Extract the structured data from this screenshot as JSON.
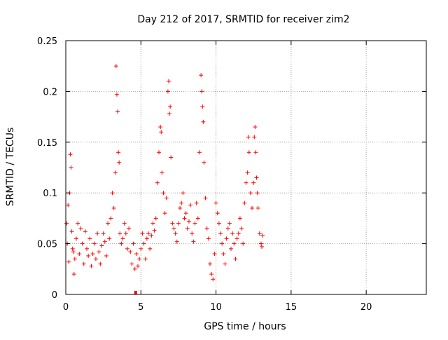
{
  "chart_data": {
    "type": "scatter",
    "title": "Day 212 of 2017, SRMTID for receiver zim2",
    "xlabel": "GPS time / hours",
    "ylabel": "SRMTID / TECUs",
    "xlim": [
      0,
      24
    ],
    "ylim": [
      0,
      0.25
    ],
    "x_ticks": [
      0,
      5,
      10,
      15,
      20
    ],
    "x_tick_labels": [
      "0",
      "5",
      "10",
      "15",
      "20"
    ],
    "y_ticks": [
      0,
      0.05,
      0.1,
      0.15,
      0.2,
      0.25
    ],
    "y_tick_labels": [
      "0",
      "0.05",
      "0.1",
      "0.15",
      "0.2",
      "0.25"
    ],
    "grid": true,
    "marker": "+",
    "colors": {
      "series": "#ff0000",
      "grid": "#a0a0a0",
      "axis": "#000000"
    },
    "series": [
      {
        "name": "zim2",
        "points": [
          [
            0.05,
            0.07
          ],
          [
            0.1,
            0.05
          ],
          [
            0.15,
            0.088
          ],
          [
            0.2,
            0.032
          ],
          [
            0.25,
            0.1
          ],
          [
            0.3,
            0.138
          ],
          [
            0.35,
            0.125
          ],
          [
            0.4,
            0.062
          ],
          [
            0.45,
            0.045
          ],
          [
            0.5,
            0.042
          ],
          [
            0.55,
            0.02
          ],
          [
            0.6,
            0.035
          ],
          [
            0.7,
            0.055
          ],
          [
            0.8,
            0.07
          ],
          [
            0.9,
            0.04
          ],
          [
            1.0,
            0.065
          ],
          [
            1.1,
            0.05
          ],
          [
            1.2,
            0.03
          ],
          [
            1.3,
            0.062
          ],
          [
            1.4,
            0.045
          ],
          [
            1.5,
            0.038
          ],
          [
            1.6,
            0.055
          ],
          [
            1.7,
            0.028
          ],
          [
            1.8,
            0.04
          ],
          [
            1.9,
            0.05
          ],
          [
            2.0,
            0.035
          ],
          [
            2.1,
            0.06
          ],
          [
            2.2,
            0.042
          ],
          [
            2.3,
            0.03
          ],
          [
            2.4,
            0.048
          ],
          [
            2.5,
            0.06
          ],
          [
            2.6,
            0.052
          ],
          [
            2.7,
            0.038
          ],
          [
            2.8,
            0.07
          ],
          [
            2.9,
            0.055
          ],
          [
            3.0,
            0.075
          ],
          [
            3.1,
            0.1
          ],
          [
            3.2,
            0.085
          ],
          [
            3.3,
            0.12
          ],
          [
            3.35,
            0.225
          ],
          [
            3.4,
            0.197
          ],
          [
            3.45,
            0.18
          ],
          [
            3.5,
            0.14
          ],
          [
            3.55,
            0.13
          ],
          [
            3.6,
            0.06
          ],
          [
            3.7,
            0.05
          ],
          [
            3.8,
            0.055
          ],
          [
            3.9,
            0.07
          ],
          [
            4.0,
            0.06
          ],
          [
            4.1,
            0.045
          ],
          [
            4.2,
            0.065
          ],
          [
            4.3,
            0.042
          ],
          [
            4.4,
            0.03
          ],
          [
            4.5,
            0.05
          ],
          [
            4.6,
            0.025
          ],
          [
            4.7,
            0.04
          ],
          [
            4.8,
            0.028
          ],
          [
            4.9,
            0.035
          ],
          [
            5.0,
            0.045
          ],
          [
            5.1,
            0.06
          ],
          [
            5.2,
            0.05
          ],
          [
            5.3,
            0.035
          ],
          [
            5.4,
            0.055
          ],
          [
            5.5,
            0.06
          ],
          [
            5.6,
            0.045
          ],
          [
            5.7,
            0.058
          ],
          [
            5.8,
            0.07
          ],
          [
            5.9,
            0.063
          ],
          [
            6.0,
            0.075
          ],
          [
            6.1,
            0.11
          ],
          [
            6.2,
            0.14
          ],
          [
            6.3,
            0.165
          ],
          [
            6.35,
            0.16
          ],
          [
            6.4,
            0.12
          ],
          [
            6.5,
            0.1
          ],
          [
            6.6,
            0.08
          ],
          [
            6.7,
            0.095
          ],
          [
            6.8,
            0.2
          ],
          [
            6.85,
            0.21
          ],
          [
            6.9,
            0.178
          ],
          [
            6.95,
            0.185
          ],
          [
            7.0,
            0.135
          ],
          [
            7.1,
            0.07
          ],
          [
            7.2,
            0.065
          ],
          [
            7.3,
            0.06
          ],
          [
            7.4,
            0.052
          ],
          [
            7.5,
            0.07
          ],
          [
            7.6,
            0.085
          ],
          [
            7.7,
            0.09
          ],
          [
            7.8,
            0.1
          ],
          [
            7.9,
            0.075
          ],
          [
            8.0,
            0.08
          ],
          [
            8.1,
            0.065
          ],
          [
            8.2,
            0.072
          ],
          [
            8.3,
            0.088
          ],
          [
            8.4,
            0.06
          ],
          [
            8.5,
            0.052
          ],
          [
            8.6,
            0.07
          ],
          [
            8.7,
            0.09
          ],
          [
            8.8,
            0.075
          ],
          [
            8.9,
            0.14
          ],
          [
            9.0,
            0.216
          ],
          [
            9.05,
            0.2
          ],
          [
            9.1,
            0.185
          ],
          [
            9.15,
            0.17
          ],
          [
            9.2,
            0.13
          ],
          [
            9.3,
            0.095
          ],
          [
            9.4,
            0.065
          ],
          [
            9.5,
            0.055
          ],
          [
            9.6,
            0.03
          ],
          [
            9.7,
            0.02
          ],
          [
            9.8,
            0.015
          ],
          [
            9.9,
            0.04
          ],
          [
            10.0,
            0.09
          ],
          [
            10.1,
            0.08
          ],
          [
            10.2,
            0.07
          ],
          [
            10.3,
            0.06
          ],
          [
            10.4,
            0.05
          ],
          [
            10.5,
            0.04
          ],
          [
            10.6,
            0.03
          ],
          [
            10.7,
            0.055
          ],
          [
            10.8,
            0.065
          ],
          [
            10.9,
            0.07
          ],
          [
            11.0,
            0.045
          ],
          [
            11.1,
            0.06
          ],
          [
            11.2,
            0.05
          ],
          [
            11.3,
            0.035
          ],
          [
            11.4,
            0.055
          ],
          [
            11.5,
            0.06
          ],
          [
            11.6,
            0.075
          ],
          [
            11.7,
            0.065
          ],
          [
            11.8,
            0.05
          ],
          [
            11.9,
            0.09
          ],
          [
            12.0,
            0.11
          ],
          [
            12.1,
            0.12
          ],
          [
            12.15,
            0.155
          ],
          [
            12.2,
            0.14
          ],
          [
            12.3,
            0.1
          ],
          [
            12.4,
            0.085
          ],
          [
            12.5,
            0.11
          ],
          [
            12.55,
            0.155
          ],
          [
            12.6,
            0.165
          ],
          [
            12.65,
            0.14
          ],
          [
            12.7,
            0.115
          ],
          [
            12.75,
            0.1
          ],
          [
            12.8,
            0.085
          ],
          [
            12.9,
            0.06
          ],
          [
            13.0,
            0.05
          ],
          [
            13.05,
            0.047
          ],
          [
            13.1,
            0.058
          ]
        ]
      }
    ],
    "annotations": [
      {
        "type": "red-bar",
        "x": 4.65,
        "y": 0.0
      }
    ]
  }
}
